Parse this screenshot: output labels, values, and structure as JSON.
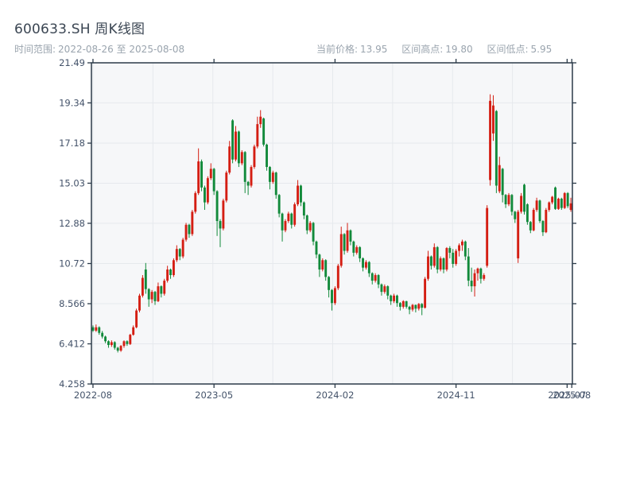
{
  "header": {
    "title": "600633.SH 周K线图",
    "range_label": "时间范围:",
    "range_value": "2022-08-26 至 2025-08-08",
    "stats": {
      "current_label": "当前价格:",
      "current_value": "13.95",
      "high_label": "区间高点:",
      "high_value": "19.80",
      "low_label": "区间低点:",
      "low_value": "5.95"
    }
  },
  "chart_data": {
    "type": "candlestick",
    "symbol": "600633.SH",
    "interval": "weekly",
    "title": "600633.SH 周K线图",
    "start_date": "2022-08-26",
    "end_date": "2025-08-08",
    "current_price": 13.95,
    "range_high": 19.8,
    "range_low": 5.95,
    "y_axis": {
      "min": 4.258,
      "max": 21.49,
      "ticks": [
        "21.49",
        "19.34",
        "17.18",
        "15.03",
        "12.88",
        "10.72",
        "8.566",
        "6.412",
        "4.258"
      ]
    },
    "x_ticks": [
      {
        "label": "2022-08",
        "week": 0
      },
      {
        "label": "2023-05",
        "week": 39
      },
      {
        "label": "2024-02",
        "week": 78
      },
      {
        "label": "2024-11",
        "week": 117
      },
      {
        "label": "2025-07",
        "week": 152.8
      },
      {
        "label": "2025-08",
        "week": 154.3
      }
    ],
    "grid": {
      "v_lines": 9,
      "h_on_major": true
    },
    "colors": {
      "up": "#d41e13",
      "down": "#128a3b",
      "grid": "#e6e9ed",
      "plot_bg": "#f6f7f9",
      "spine": "#2b3a49",
      "tick_label": "#44536a",
      "title": "#3b4653",
      "subtitle": "#9aa4ae"
    },
    "ohlc": [
      [
        7.3,
        7.4,
        7.05,
        7.12
      ],
      [
        7.12,
        7.45,
        7.05,
        7.3
      ],
      [
        7.3,
        7.35,
        6.9,
        7.0
      ],
      [
        7.0,
        7.1,
        6.7,
        6.8
      ],
      [
        6.8,
        6.85,
        6.45,
        6.55
      ],
      [
        6.55,
        6.6,
        6.2,
        6.35
      ],
      [
        6.35,
        6.6,
        6.25,
        6.5
      ],
      [
        6.5,
        6.55,
        6.1,
        6.2
      ],
      [
        6.2,
        6.25,
        5.95,
        6.05
      ],
      [
        6.05,
        6.35,
        5.98,
        6.3
      ],
      [
        6.3,
        6.6,
        6.2,
        6.55
      ],
      [
        6.55,
        6.6,
        6.3,
        6.4
      ],
      [
        6.4,
        6.95,
        6.35,
        6.9
      ],
      [
        6.9,
        7.4,
        6.85,
        7.3
      ],
      [
        7.3,
        8.3,
        7.25,
        8.2
      ],
      [
        8.2,
        9.1,
        8.1,
        9.0
      ],
      [
        9.0,
        10.1,
        8.9,
        9.95
      ],
      [
        10.4,
        10.75,
        9.1,
        9.35
      ],
      [
        9.35,
        9.4,
        8.4,
        8.8
      ],
      [
        8.8,
        9.3,
        8.6,
        9.2
      ],
      [
        9.2,
        9.25,
        8.5,
        8.7
      ],
      [
        8.7,
        9.7,
        8.65,
        9.5
      ],
      [
        9.5,
        9.55,
        8.9,
        9.1
      ],
      [
        9.1,
        9.9,
        9.0,
        9.8
      ],
      [
        9.8,
        10.6,
        9.7,
        10.4
      ],
      [
        10.4,
        10.45,
        9.9,
        10.1
      ],
      [
        10.1,
        11.0,
        10.0,
        10.9
      ],
      [
        10.9,
        11.7,
        10.8,
        11.5
      ],
      [
        11.5,
        11.55,
        10.9,
        11.1
      ],
      [
        11.1,
        12.1,
        11.0,
        12.0
      ],
      [
        12.0,
        12.9,
        11.9,
        12.8
      ],
      [
        12.8,
        12.85,
        12.1,
        12.3
      ],
      [
        12.3,
        13.6,
        12.2,
        13.5
      ],
      [
        13.5,
        14.6,
        13.4,
        14.5
      ],
      [
        14.5,
        16.9,
        14.4,
        16.2
      ],
      [
        16.2,
        16.3,
        14.6,
        14.8
      ],
      [
        14.8,
        14.9,
        13.6,
        14.0
      ],
      [
        14.0,
        15.4,
        13.9,
        15.3
      ],
      [
        15.3,
        16.1,
        15.2,
        15.8
      ],
      [
        15.8,
        15.85,
        14.4,
        14.6
      ],
      [
        14.6,
        14.65,
        12.2,
        13.0
      ],
      [
        13.0,
        13.1,
        11.6,
        12.6
      ],
      [
        12.6,
        14.2,
        12.5,
        14.1
      ],
      [
        14.1,
        15.7,
        14.0,
        15.6
      ],
      [
        15.6,
        17.3,
        15.5,
        17.0
      ],
      [
        18.4,
        18.46,
        16.1,
        16.3
      ],
      [
        16.3,
        18.1,
        16.2,
        17.8
      ],
      [
        17.8,
        17.85,
        15.9,
        16.1
      ],
      [
        16.1,
        16.8,
        16.0,
        16.7
      ],
      [
        16.7,
        16.75,
        14.5,
        15.1
      ],
      [
        15.1,
        15.15,
        14.4,
        14.9
      ],
      [
        14.9,
        16.0,
        14.8,
        15.9
      ],
      [
        15.9,
        17.1,
        15.8,
        17.0
      ],
      [
        17.0,
        18.6,
        16.9,
        18.2
      ],
      [
        18.2,
        18.95,
        18.0,
        18.6
      ],
      [
        18.5,
        18.55,
        17.0,
        17.1
      ],
      [
        17.1,
        17.15,
        15.7,
        15.9
      ],
      [
        15.9,
        15.95,
        14.7,
        15.1
      ],
      [
        15.1,
        15.7,
        15.0,
        15.6
      ],
      [
        15.6,
        15.65,
        14.2,
        14.4
      ],
      [
        14.4,
        14.45,
        13.2,
        13.4
      ],
      [
        13.4,
        13.45,
        11.9,
        12.5
      ],
      [
        12.5,
        13.1,
        12.4,
        13.0
      ],
      [
        13.0,
        13.5,
        12.9,
        13.4
      ],
      [
        13.4,
        13.45,
        12.6,
        12.8
      ],
      [
        12.8,
        14.0,
        12.7,
        13.9
      ],
      [
        13.9,
        15.2,
        13.8,
        14.9
      ],
      [
        14.9,
        14.95,
        13.8,
        14.0
      ],
      [
        14.0,
        14.05,
        13.1,
        13.3
      ],
      [
        13.3,
        13.35,
        12.3,
        12.5
      ],
      [
        12.5,
        13.0,
        12.4,
        12.9
      ],
      [
        12.9,
        12.95,
        11.7,
        11.9
      ],
      [
        11.9,
        11.95,
        11.0,
        11.2
      ],
      [
        11.2,
        11.25,
        10.0,
        10.4
      ],
      [
        10.4,
        11.0,
        10.3,
        10.9
      ],
      [
        10.9,
        10.95,
        9.8,
        10.0
      ],
      [
        10.0,
        10.05,
        8.9,
        9.3
      ],
      [
        9.3,
        9.35,
        8.2,
        8.6
      ],
      [
        8.6,
        9.5,
        8.5,
        9.4
      ],
      [
        9.4,
        10.7,
        9.3,
        10.6
      ],
      [
        10.6,
        12.7,
        10.5,
        12.3
      ],
      [
        12.3,
        12.35,
        11.2,
        11.4
      ],
      [
        11.4,
        12.9,
        11.3,
        12.5
      ],
      [
        12.5,
        12.55,
        11.7,
        11.9
      ],
      [
        11.9,
        11.95,
        11.1,
        11.3
      ],
      [
        11.3,
        11.7,
        11.2,
        11.6
      ],
      [
        11.6,
        11.65,
        10.8,
        11.0
      ],
      [
        11.0,
        11.05,
        10.3,
        10.5
      ],
      [
        10.5,
        10.9,
        10.4,
        10.8
      ],
      [
        10.8,
        10.85,
        10.0,
        10.2
      ],
      [
        10.2,
        10.25,
        9.6,
        9.8
      ],
      [
        9.8,
        10.2,
        9.7,
        10.1
      ],
      [
        10.1,
        10.15,
        9.4,
        9.6
      ],
      [
        9.6,
        9.65,
        9.0,
        9.2
      ],
      [
        9.2,
        9.6,
        9.1,
        9.5
      ],
      [
        9.5,
        9.55,
        8.8,
        9.0
      ],
      [
        9.0,
        9.05,
        8.5,
        8.7
      ],
      [
        8.7,
        9.1,
        8.6,
        9.0
      ],
      [
        9.0,
        9.05,
        8.4,
        8.6
      ],
      [
        8.6,
        8.65,
        8.2,
        8.4
      ],
      [
        8.4,
        8.75,
        8.3,
        8.7
      ],
      [
        8.7,
        8.72,
        8.3,
        8.4
      ],
      [
        8.4,
        8.45,
        8.0,
        8.25
      ],
      [
        8.25,
        8.55,
        8.15,
        8.5
      ],
      [
        8.5,
        8.52,
        8.1,
        8.3
      ],
      [
        8.3,
        8.6,
        8.2,
        8.55
      ],
      [
        8.55,
        8.6,
        7.95,
        8.35
      ],
      [
        8.35,
        10.0,
        8.3,
        9.9
      ],
      [
        9.9,
        11.4,
        9.8,
        11.1
      ],
      [
        11.1,
        11.15,
        10.4,
        10.6
      ],
      [
        10.6,
        11.8,
        10.5,
        11.6
      ],
      [
        11.6,
        11.65,
        10.2,
        10.4
      ],
      [
        10.4,
        11.1,
        10.3,
        11.0
      ],
      [
        11.0,
        11.05,
        10.2,
        10.4
      ],
      [
        10.4,
        11.6,
        10.3,
        11.55
      ],
      [
        11.55,
        11.65,
        11.0,
        11.3
      ],
      [
        11.3,
        11.5,
        10.5,
        10.7
      ],
      [
        10.7,
        11.5,
        10.6,
        11.4
      ],
      [
        11.4,
        11.8,
        11.1,
        11.7
      ],
      [
        11.7,
        12.0,
        11.4,
        11.9
      ],
      [
        11.9,
        11.95,
        10.9,
        11.1
      ],
      [
        11.1,
        11.55,
        9.5,
        9.8
      ],
      [
        9.8,
        10.5,
        9.2,
        9.5
      ],
      [
        9.5,
        10.4,
        8.95,
        10.2
      ],
      [
        10.2,
        10.5,
        9.8,
        10.45
      ],
      [
        10.45,
        10.5,
        9.65,
        9.9
      ],
      [
        9.9,
        10.2,
        9.8,
        10.1
      ],
      [
        10.6,
        13.85,
        10.5,
        13.7
      ],
      [
        15.2,
        19.8,
        14.9,
        19.45
      ],
      [
        17.7,
        19.75,
        17.3,
        19.2
      ],
      [
        18.9,
        18.95,
        14.5,
        14.9
      ],
      [
        14.6,
        16.45,
        14.5,
        16.0
      ],
      [
        15.8,
        15.85,
        14.0,
        14.4
      ],
      [
        14.4,
        14.45,
        13.7,
        13.9
      ],
      [
        13.9,
        14.5,
        13.8,
        14.4
      ],
      [
        14.4,
        14.45,
        13.3,
        13.5
      ],
      [
        13.5,
        13.55,
        12.9,
        13.1
      ],
      [
        11.0,
        13.6,
        10.75,
        13.5
      ],
      [
        13.5,
        14.5,
        13.4,
        14.35
      ],
      [
        14.95,
        15.0,
        13.35,
        13.5
      ],
      [
        13.9,
        13.95,
        12.8,
        12.95
      ],
      [
        12.95,
        13.0,
        12.35,
        12.5
      ],
      [
        12.5,
        13.7,
        12.45,
        13.6
      ],
      [
        13.6,
        14.25,
        13.5,
        14.1
      ],
      [
        14.1,
        14.15,
        12.9,
        13.0
      ],
      [
        13.0,
        13.05,
        12.2,
        12.4
      ],
      [
        12.4,
        13.7,
        12.35,
        13.6
      ],
      [
        13.6,
        14.05,
        13.5,
        14.0
      ],
      [
        14.0,
        14.35,
        13.9,
        14.3
      ],
      [
        14.8,
        14.85,
        13.6,
        13.65
      ],
      [
        13.65,
        14.25,
        13.6,
        14.2
      ],
      [
        14.2,
        14.25,
        13.6,
        13.7
      ],
      [
        13.7,
        14.55,
        13.65,
        14.5
      ],
      [
        14.5,
        14.55,
        13.7,
        13.8
      ],
      [
        13.6,
        14.25,
        13.5,
        13.95
      ]
    ]
  }
}
